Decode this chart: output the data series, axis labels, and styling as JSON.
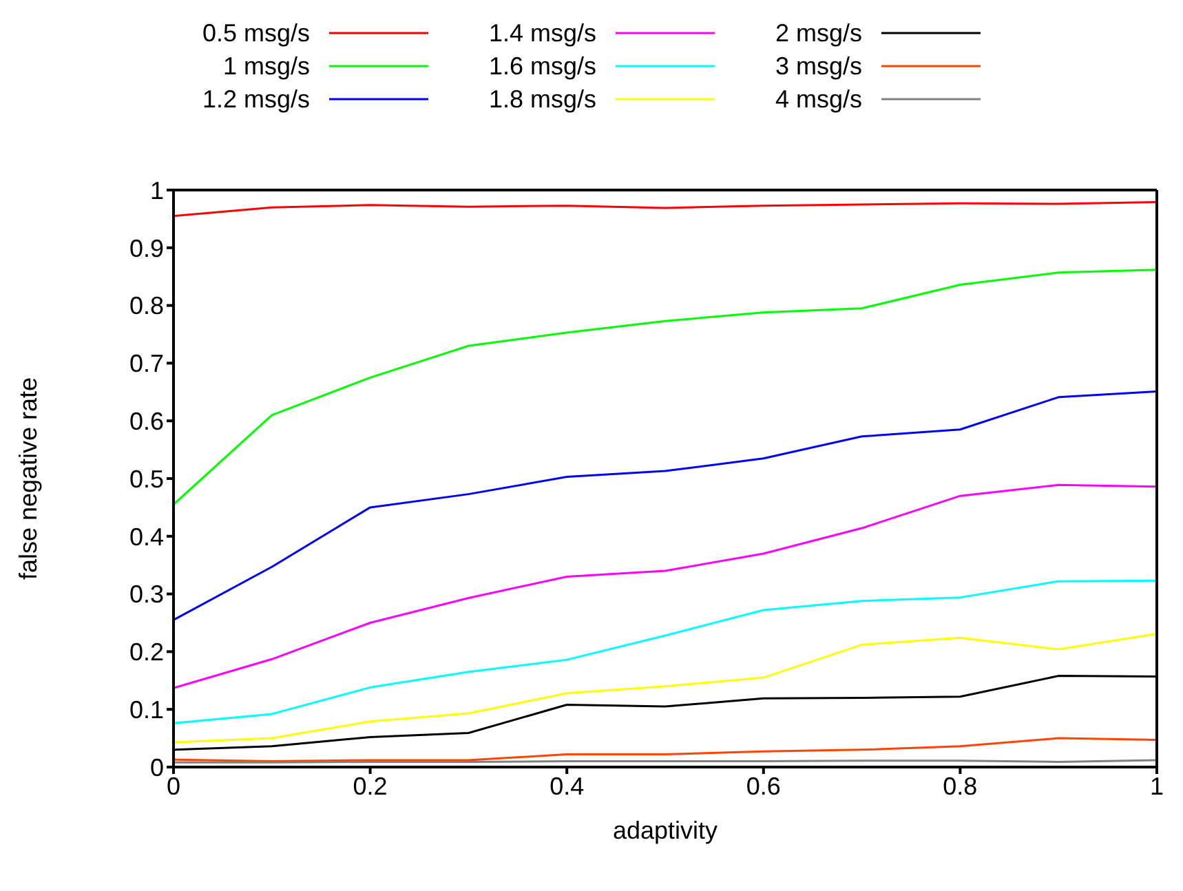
{
  "chart_data": {
    "type": "line",
    "xlabel": "adaptivity",
    "ylabel": "false negative rate",
    "x": [
      0,
      0.1,
      0.2,
      0.3,
      0.4,
      0.5,
      0.6,
      0.7,
      0.8,
      0.9,
      1
    ],
    "xlim": [
      0,
      1
    ],
    "xticks": [
      0,
      0.2,
      0.4,
      0.6,
      0.8,
      1
    ],
    "ylim": [
      0,
      1
    ],
    "yticks": [
      0,
      0.1,
      0.2,
      0.3,
      0.4,
      0.5,
      0.6,
      0.7,
      0.8,
      0.9,
      1
    ],
    "legend": "top",
    "marker": "none",
    "line_style": "solid",
    "series": [
      {
        "name": "0.5 msg/s",
        "color": "#ff0000",
        "values": [
          0.955,
          0.97,
          0.974,
          0.971,
          0.973,
          0.969,
          0.973,
          0.975,
          0.977,
          0.976,
          0.979
        ]
      },
      {
        "name": "1 msg/s",
        "color": "#00ff00",
        "values": [
          0.455,
          0.61,
          0.675,
          0.73,
          0.753,
          0.773,
          0.788,
          0.795,
          0.836,
          0.857,
          0.862
        ]
      },
      {
        "name": "1.2 msg/s",
        "color": "#0000ff",
        "values": [
          0.255,
          0.347,
          0.45,
          0.473,
          0.503,
          0.513,
          0.535,
          0.573,
          0.585,
          0.641,
          0.651
        ]
      },
      {
        "name": "1.4 msg/s",
        "color": "#ff00ff",
        "values": [
          0.137,
          0.187,
          0.25,
          0.293,
          0.33,
          0.34,
          0.37,
          0.414,
          0.47,
          0.489,
          0.486
        ]
      },
      {
        "name": "1.6 msg/s",
        "color": "#00ffff",
        "values": [
          0.076,
          0.092,
          0.138,
          0.165,
          0.186,
          0.228,
          0.272,
          0.288,
          0.294,
          0.322,
          0.323
        ]
      },
      {
        "name": "1.8 msg/s",
        "color": "#ffff00",
        "values": [
          0.043,
          0.05,
          0.079,
          0.093,
          0.128,
          0.14,
          0.155,
          0.212,
          0.224,
          0.204,
          0.231
        ]
      },
      {
        "name": "2 msg/s",
        "color": "#000000",
        "values": [
          0.03,
          0.036,
          0.052,
          0.059,
          0.108,
          0.105,
          0.119,
          0.12,
          0.122,
          0.158,
          0.157
        ]
      },
      {
        "name": "3 msg/s",
        "color": "#ff4500",
        "values": [
          0.013,
          0.01,
          0.012,
          0.012,
          0.022,
          0.022,
          0.027,
          0.03,
          0.036,
          0.05,
          0.047
        ]
      },
      {
        "name": "4 msg/s",
        "color": "#808080",
        "values": [
          0.008,
          0.008,
          0.009,
          0.009,
          0.01,
          0.01,
          0.01,
          0.011,
          0.011,
          0.009,
          0.012
        ]
      }
    ]
  }
}
